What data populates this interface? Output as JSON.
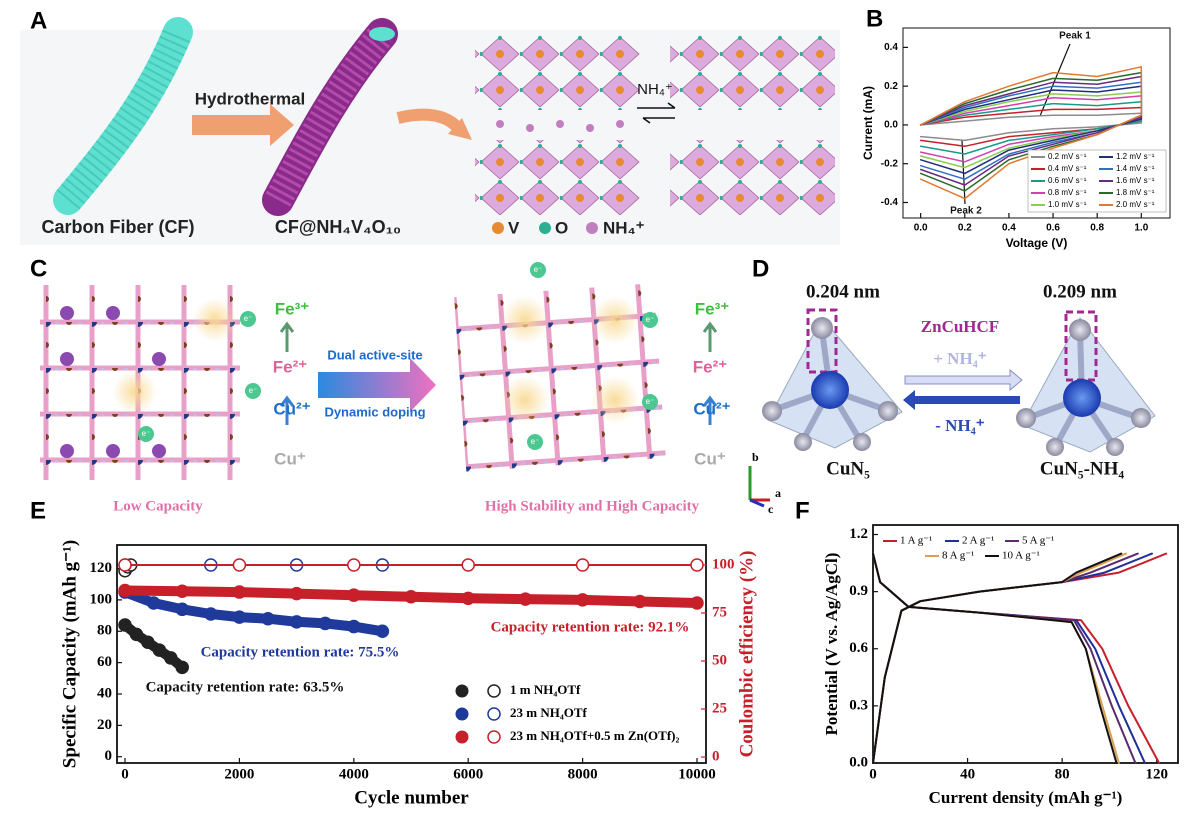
{
  "panel_labels": [
    "A",
    "B",
    "C",
    "D",
    "E",
    "F"
  ],
  "panel_a": {
    "fiber_label": "Carbon Fiber (CF)",
    "process": "Hydrothermal",
    "product": "CF@NH₄V₄O₁₀",
    "exchange": "NH₄⁺",
    "legend": [
      "V",
      "O",
      "NH₄⁺"
    ]
  },
  "panel_c": {
    "ions_left": [
      "Fe³⁺",
      "Fe²⁺",
      "Cu²⁺",
      "Cu⁺"
    ],
    "ions_right": [
      "Fe³⁺",
      "Fe²⁺",
      "Cu²⁺",
      "Cu⁺"
    ],
    "electron": "e⁻",
    "arrow_top": "Dual active-site",
    "arrow_bottom": "Dynamic doping",
    "caption_left": "Low Capacity",
    "caption_right": "High Stability and High Capacity"
  },
  "panel_d": {
    "length_left": "0.204 nm",
    "length_right": "0.209 nm",
    "material": "ZnCuHCF",
    "insert": "+ NH₄⁺",
    "extract": "- NH₄⁺",
    "site_left": "CuN₅",
    "site_right": "CuN₅-NH₄",
    "axes": [
      "a",
      "b",
      "c"
    ]
  },
  "chart_data": [
    {
      "type": "line",
      "x_label": "Voltage (V)",
      "y_label": "Current (mA)",
      "x": [
        0,
        0.2,
        0.4,
        0.6,
        0.8,
        1.0,
        1.0,
        0.8,
        0.6,
        0.4,
        0.2,
        0
      ],
      "xlim": [
        -0.08,
        1.13
      ],
      "xticks": [
        {
          "value": 0,
          "label": "0.0"
        },
        0.2,
        0.4,
        0.6,
        0.8,
        {
          "value": 1,
          "label": "1.0"
        }
      ],
      "ylim": [
        -0.48,
        0.5
      ],
      "yticks": [
        -0.4,
        -0.2,
        {
          "value": 0,
          "label": "0.0"
        },
        0.2,
        0.4
      ],
      "annotations": [
        "Peak 1",
        "Peak 2"
      ],
      "legend": "lower right",
      "series": [
        {
          "name": "0.2 mV s⁻¹",
          "color": "#8c8c8c",
          "values": [
            0,
            0.02,
            0.04,
            0.05,
            0.05,
            0.06,
            0.01,
            -0.01,
            -0.02,
            -0.04,
            -0.08,
            -0.06
          ]
        },
        {
          "name": "0.4 mV s⁻¹",
          "color": "#c8202a",
          "values": [
            0,
            0.04,
            0.06,
            0.08,
            0.08,
            0.09,
            0.02,
            -0.02,
            -0.04,
            -0.06,
            -0.11,
            -0.08
          ]
        },
        {
          "name": "0.6 mV s⁻¹",
          "color": "#1a9a8a",
          "values": [
            0,
            0.05,
            0.08,
            0.11,
            0.1,
            0.12,
            0.02,
            -0.02,
            -0.05,
            -0.08,
            -0.15,
            -0.11
          ]
        },
        {
          "name": "0.8 mV s⁻¹",
          "color": "#d040b0",
          "values": [
            0,
            0.06,
            0.1,
            0.14,
            0.13,
            0.15,
            0.03,
            -0.03,
            -0.06,
            -0.1,
            -0.19,
            -0.14
          ]
        },
        {
          "name": "1.0 mV s⁻¹",
          "color": "#8ccc50",
          "values": [
            0,
            0.07,
            0.12,
            0.16,
            0.15,
            0.17,
            0.03,
            -0.03,
            -0.07,
            -0.12,
            -0.22,
            -0.16
          ]
        },
        {
          "name": "1.2 mV s⁻¹",
          "color": "#1f2f7a",
          "values": [
            0,
            0.08,
            0.13,
            0.18,
            0.17,
            0.2,
            0.03,
            -0.03,
            -0.08,
            -0.13,
            -0.25,
            -0.18
          ]
        },
        {
          "name": "1.4 mV s⁻¹",
          "color": "#3070c0",
          "values": [
            0,
            0.09,
            0.15,
            0.2,
            0.19,
            0.22,
            0.04,
            -0.04,
            -0.09,
            -0.15,
            -0.28,
            -0.21
          ]
        },
        {
          "name": "1.6 mV s⁻¹",
          "color": "#6a2a80",
          "values": [
            0,
            0.1,
            0.16,
            0.22,
            0.21,
            0.25,
            0.04,
            -0.04,
            -0.1,
            -0.16,
            -0.31,
            -0.23
          ]
        },
        {
          "name": "1.8 mV s⁻¹",
          "color": "#2a6a30",
          "values": [
            0,
            0.11,
            0.18,
            0.24,
            0.23,
            0.27,
            0.05,
            -0.05,
            -0.11,
            -0.18,
            -0.34,
            -0.25
          ]
        },
        {
          "name": "2.0 mV s⁻¹",
          "color": "#e07a30",
          "values": [
            0,
            0.12,
            0.2,
            0.27,
            0.25,
            0.3,
            0.05,
            -0.05,
            -0.12,
            -0.2,
            -0.38,
            -0.28
          ]
        }
      ]
    },
    {
      "type": "scatter",
      "x_label": "Cycle number",
      "y_label": "Specific Capacity (mAh g⁻¹)",
      "y2_label": "Coulombic efficiency (%)",
      "y2_color": "#c8202a",
      "xlim": [
        -140,
        10157
      ],
      "xticks": [
        0,
        2000,
        4000,
        6000,
        8000,
        10000
      ],
      "ylim": [
        -4,
        135
      ],
      "yticks": [
        0,
        20,
        40,
        60,
        80,
        100,
        120
      ],
      "y2lim": [
        -3.1,
        110.4
      ],
      "y2ticks": [
        0,
        25,
        50,
        75,
        100
      ],
      "annotations": [
        "Capacity retention rate: 63.5%",
        "Capacity retention rate: 75.5%",
        "Capacity retention rate: 92.1%"
      ],
      "annotation_colors": [
        "#111111",
        "#1f3a9a",
        "#c8202a"
      ],
      "legend": "lower right",
      "series": [
        {
          "name": "1 m NH₄OTf",
          "color": "#222222",
          "x": [
            0,
            200,
            400,
            600,
            800,
            1000
          ],
          "values": [
            84,
            78,
            73,
            68,
            63,
            57
          ]
        },
        {
          "name": "23 m NH₄OTf",
          "color": "#1f3a9a",
          "x": [
            0,
            500,
            1000,
            1500,
            2000,
            2500,
            3000,
            3500,
            4000,
            4500
          ],
          "values": [
            105,
            98,
            94,
            91,
            89,
            88,
            86,
            85,
            83,
            80
          ]
        },
        {
          "name": "23 m NH₄OTf+0.5 m Zn(OTf)₂",
          "color": "#c8202a",
          "x": [
            0,
            1000,
            2000,
            3000,
            4000,
            5000,
            6000,
            7000,
            8000,
            9000,
            10000
          ],
          "values": [
            106,
            105.5,
            105,
            104,
            103,
            102,
            101,
            100.5,
            100,
            99,
            98
          ]
        },
        {
          "color": "#222222",
          "axis": "y2",
          "x": [
            0,
            50,
            100
          ],
          "values": [
            97,
            99,
            100
          ]
        },
        {
          "color": "#1f3a9a",
          "axis": "y2",
          "x": [
            0,
            1500,
            3000,
            4500
          ],
          "values": [
            100,
            100,
            100,
            100
          ]
        },
        {
          "color": "#c8202a",
          "axis": "y2",
          "x": [
            0,
            2000,
            4000,
            6000,
            8000,
            10000
          ],
          "values": [
            100,
            100,
            100,
            100,
            100,
            100
          ]
        }
      ]
    },
    {
      "type": "line",
      "x_label": "Current density (mAh g⁻¹)",
      "y_label": "Potential (V vs. Ag/AgCl)",
      "xlim": [
        0,
        129
      ],
      "xticks": [
        0,
        40,
        80,
        120
      ],
      "ylim": [
        0,
        1.25
      ],
      "yticks": [
        {
          "value": 0,
          "label": "0.0"
        },
        0.3,
        0.6,
        0.9,
        1.2
      ],
      "legend": "upper left",
      "series": [
        {
          "name": "1 A g⁻¹",
          "color": "#c8202a",
          "x": [
            0,
            5,
            12,
            20,
            45,
            80,
            104,
            124,
            0,
            0,
            3,
            15,
            45,
            88,
            97,
            108,
            121
          ],
          "values": [
            0,
            0.45,
            0.8,
            0.85,
            0.9,
            0.95,
            1.0,
            1.1,
            null,
            1.1,
            0.95,
            0.82,
            0.79,
            0.75,
            0.6,
            0.3,
            0
          ]
        },
        {
          "name": "2 A g⁻¹",
          "color": "#1f2f9a",
          "x": [
            0,
            5,
            12,
            20,
            45,
            80,
            98,
            118,
            0,
            0,
            3,
            15,
            45,
            86,
            94,
            104,
            115
          ],
          "values": [
            0,
            0.45,
            0.8,
            0.85,
            0.9,
            0.95,
            1.0,
            1.1,
            null,
            1.1,
            0.95,
            0.82,
            0.79,
            0.75,
            0.6,
            0.3,
            0
          ]
        },
        {
          "name": "5 A g⁻¹",
          "color": "#5a2a6e",
          "x": [
            0,
            5,
            12,
            20,
            45,
            80,
            92,
            112,
            0,
            0,
            3,
            15,
            45,
            85,
            92,
            101,
            111
          ],
          "values": [
            0,
            0.45,
            0.8,
            0.85,
            0.9,
            0.95,
            1.0,
            1.1,
            null,
            1.1,
            0.95,
            0.82,
            0.79,
            0.75,
            0.6,
            0.3,
            0
          ]
        },
        {
          "name": "8 A g⁻¹",
          "color": "#d9a050",
          "x": [
            0,
            5,
            12,
            20,
            45,
            80,
            88,
            107,
            0,
            0,
            3,
            15,
            45,
            84,
            90,
            97,
            104
          ],
          "values": [
            0,
            0.45,
            0.8,
            0.85,
            0.9,
            0.95,
            1.0,
            1.1,
            null,
            1.1,
            0.95,
            0.82,
            0.79,
            0.74,
            0.6,
            0.3,
            0
          ]
        },
        {
          "name": "10 A g⁻¹",
          "color": "#111111",
          "x": [
            0,
            5,
            12,
            20,
            45,
            80,
            86,
            105,
            0,
            0,
            3,
            15,
            45,
            84,
            90,
            96,
            103
          ],
          "values": [
            0,
            0.45,
            0.8,
            0.85,
            0.9,
            0.95,
            1.0,
            1.1,
            null,
            1.1,
            0.95,
            0.82,
            0.79,
            0.74,
            0.6,
            0.3,
            0
          ]
        }
      ]
    }
  ]
}
